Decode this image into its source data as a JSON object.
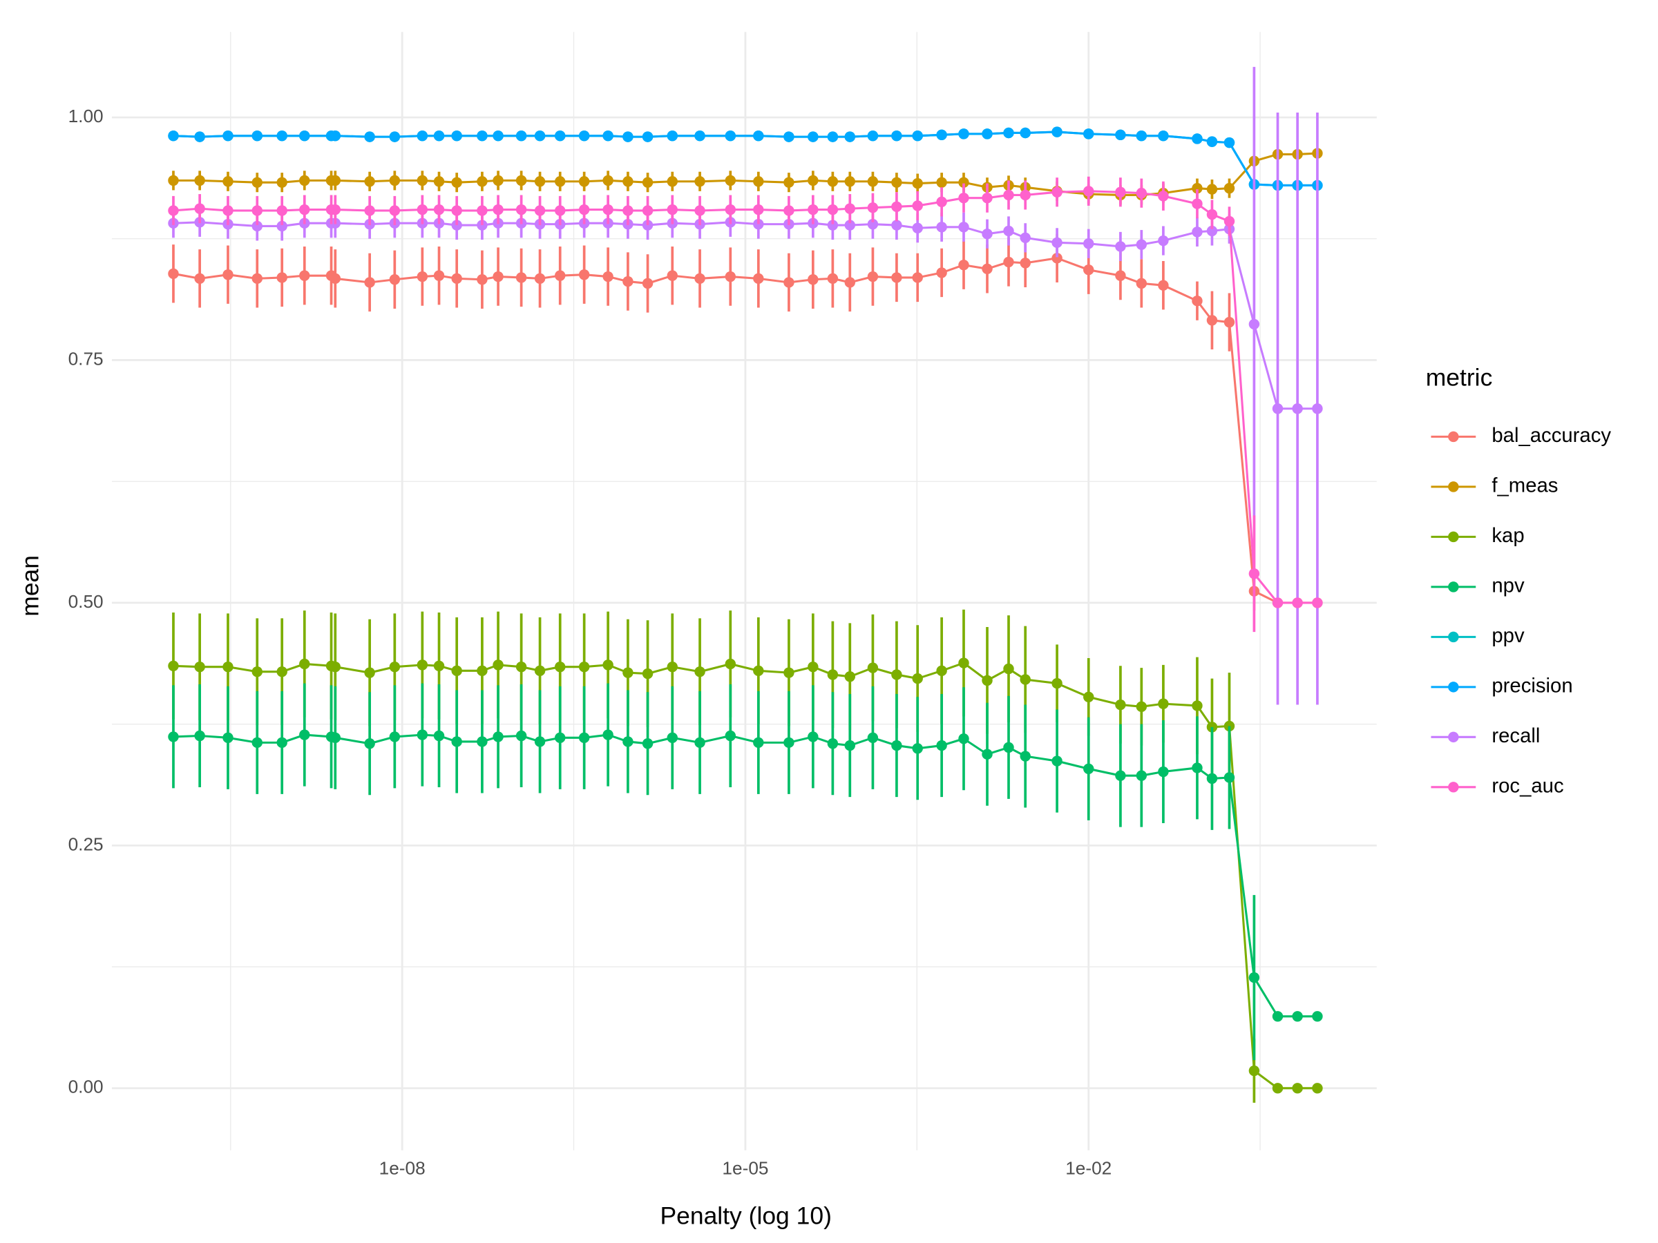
{
  "chart_data": {
    "type": "line",
    "x_label": "Penalty (log 10)",
    "y_label": "mean",
    "legend_title": "metric",
    "legend_position": "right",
    "x_log": true,
    "grid": true,
    "xlim": [
      2.9e-11,
      3.3
    ],
    "ylim": [
      -0.064,
      1.088
    ],
    "xticks": [
      {
        "value": 1e-08,
        "label": "1e-08"
      },
      {
        "value": 1e-05,
        "label": "1e-05"
      },
      {
        "value": 0.01,
        "label": "1e-02"
      }
    ],
    "xminorticks": [
      3.16e-10,
      3.16e-07,
      0.000316,
      0.316
    ],
    "yticks": [
      {
        "value": 0,
        "label": "0.00"
      },
      0.25,
      {
        "value": 0.5,
        "label": "0.50"
      },
      0.75,
      {
        "value": 1,
        "label": "1.00"
      }
    ],
    "yminorticks": [
      0.125,
      0.375,
      0.625,
      0.875
    ],
    "x": [
      1e-10,
      1.7e-10,
      3e-10,
      5.4e-10,
      8.9e-10,
      1.4e-09,
      2.4e-09,
      2.6e-09,
      5.2e-09,
      8.6e-09,
      1.5e-08,
      2.1e-08,
      3e-08,
      5e-08,
      6.9e-08,
      1.1e-07,
      1.6e-07,
      2.4e-07,
      3.9e-07,
      6.3e-07,
      9.4e-07,
      1.4e-06,
      2.3e-06,
      4e-06,
      7.4e-06,
      1.3e-05,
      2.4e-05,
      3.9e-05,
      5.8e-05,
      8.2e-05,
      0.00013,
      0.00021,
      0.00032,
      0.00052,
      0.00081,
      0.0013,
      0.002,
      0.0028,
      0.0053,
      0.01,
      0.019,
      0.029,
      0.045,
      0.089,
      0.12,
      0.17,
      0.28,
      0.45,
      0.67,
      1
    ],
    "series": [
      {
        "name": "bal_accuracy",
        "color": "#F8766D",
        "values": [
          0.839,
          0.834,
          0.838,
          0.834,
          0.835,
          0.837,
          0.837,
          0.834,
          0.83,
          0.833,
          0.836,
          0.837,
          0.834,
          0.833,
          0.836,
          0.835,
          0.834,
          0.837,
          0.838,
          0.836,
          0.831,
          0.829,
          0.837,
          0.834,
          0.836,
          0.834,
          0.83,
          0.833,
          0.834,
          0.83,
          0.836,
          0.835,
          0.835,
          0.84,
          0.848,
          0.844,
          0.851,
          0.85,
          0.855,
          0.843,
          0.837,
          0.829,
          0.827,
          0.811,
          0.791,
          0.789,
          0.512,
          0.5,
          0.5,
          0.5
        ],
        "errors": [
          0.03,
          0.03,
          0.03,
          0.03,
          0.03,
          0.03,
          0.03,
          0.03,
          0.03,
          0.03,
          0.03,
          0.03,
          0.03,
          0.03,
          0.03,
          0.03,
          0.03,
          0.03,
          0.03,
          0.03,
          0.03,
          0.03,
          0.03,
          0.03,
          0.03,
          0.03,
          0.03,
          0.03,
          0.03,
          0.03,
          0.03,
          0.025,
          0.025,
          0.025,
          0.025,
          0.025,
          0.025,
          0.025,
          0.025,
          0.025,
          0.025,
          0.025,
          0.025,
          0.02,
          0.03,
          0.03,
          0.02,
          0,
          0,
          0
        ]
      },
      {
        "name": "f_meas",
        "color": "#CD9600",
        "values": [
          0.935,
          0.935,
          0.934,
          0.933,
          0.933,
          0.935,
          0.935,
          0.935,
          0.934,
          0.935,
          0.935,
          0.934,
          0.933,
          0.934,
          0.935,
          0.935,
          0.934,
          0.934,
          0.934,
          0.935,
          0.934,
          0.933,
          0.934,
          0.934,
          0.935,
          0.934,
          0.933,
          0.935,
          0.934,
          0.934,
          0.934,
          0.933,
          0.932,
          0.933,
          0.933,
          0.928,
          0.93,
          0.928,
          0.924,
          0.921,
          0.92,
          0.92,
          0.922,
          0.927,
          0.926,
          0.927,
          0.955,
          0.962,
          0.962,
          0.963
        ],
        "errors": [
          0.01,
          0.01,
          0.01,
          0.01,
          0.01,
          0.01,
          0.01,
          0.01,
          0.01,
          0.01,
          0.01,
          0.01,
          0.01,
          0.01,
          0.01,
          0.01,
          0.01,
          0.01,
          0.01,
          0.01,
          0.01,
          0.01,
          0.01,
          0.01,
          0.01,
          0.01,
          0.01,
          0.01,
          0.01,
          0.01,
          0.01,
          0.01,
          0.01,
          0.01,
          0.01,
          0.01,
          0.01,
          0.01,
          0.01,
          0.01,
          0.01,
          0.01,
          0.01,
          0.01,
          0.01,
          0.01,
          0.005,
          0.005,
          0.005,
          0.005
        ]
      },
      {
        "name": "kap",
        "color": "#7CAE00",
        "values": [
          0.435,
          0.434,
          0.434,
          0.429,
          0.429,
          0.437,
          0.435,
          0.434,
          0.428,
          0.434,
          0.436,
          0.435,
          0.43,
          0.43,
          0.436,
          0.434,
          0.43,
          0.434,
          0.434,
          0.436,
          0.428,
          0.427,
          0.434,
          0.429,
          0.437,
          0.43,
          0.428,
          0.434,
          0.426,
          0.424,
          0.433,
          0.426,
          0.422,
          0.43,
          0.438,
          0.42,
          0.432,
          0.421,
          0.417,
          0.403,
          0.395,
          0.393,
          0.396,
          0.394,
          0.372,
          0.373,
          0.018,
          0,
          0,
          0
        ],
        "errors": [
          0.055,
          0.055,
          0.055,
          0.055,
          0.055,
          0.055,
          0.055,
          0.055,
          0.055,
          0.055,
          0.055,
          0.055,
          0.055,
          0.055,
          0.055,
          0.055,
          0.055,
          0.055,
          0.055,
          0.055,
          0.055,
          0.055,
          0.055,
          0.055,
          0.055,
          0.055,
          0.055,
          0.055,
          0.055,
          0.055,
          0.055,
          0.055,
          0.055,
          0.055,
          0.055,
          0.055,
          0.055,
          0.055,
          0.04,
          0.04,
          0.04,
          0.04,
          0.04,
          0.05,
          0.05,
          0.055,
          0.033,
          0,
          0,
          0
        ]
      },
      {
        "name": "npv",
        "color": "#00BE67",
        "values": [
          0.362,
          0.363,
          0.361,
          0.356,
          0.356,
          0.364,
          0.362,
          0.361,
          0.355,
          0.362,
          0.364,
          0.363,
          0.357,
          0.357,
          0.362,
          0.363,
          0.357,
          0.361,
          0.361,
          0.364,
          0.357,
          0.355,
          0.361,
          0.356,
          0.363,
          0.356,
          0.356,
          0.362,
          0.355,
          0.353,
          0.361,
          0.353,
          0.35,
          0.353,
          0.36,
          0.344,
          0.351,
          0.342,
          0.337,
          0.329,
          0.322,
          0.322,
          0.326,
          0.33,
          0.319,
          0.32,
          0.114,
          0.074,
          0.074,
          0.074
        ],
        "errors": [
          0.053,
          0.053,
          0.053,
          0.053,
          0.053,
          0.053,
          0.053,
          0.053,
          0.053,
          0.053,
          0.053,
          0.053,
          0.053,
          0.053,
          0.053,
          0.053,
          0.053,
          0.053,
          0.053,
          0.053,
          0.053,
          0.053,
          0.053,
          0.053,
          0.053,
          0.053,
          0.053,
          0.053,
          0.053,
          0.053,
          0.053,
          0.053,
          0.053,
          0.053,
          0.053,
          0.053,
          0.053,
          0.053,
          0.053,
          0.053,
          0.053,
          0.053,
          0.053,
          0.053,
          0.053,
          0.053,
          0.085,
          0.005,
          0.005,
          0.005
        ]
      },
      {
        "name": "ppv",
        "color": "#00BFC4",
        "values": [
          0.981,
          0.98,
          0.981,
          0.981,
          0.981,
          0.981,
          0.981,
          0.981,
          0.98,
          0.98,
          0.981,
          0.981,
          0.981,
          0.981,
          0.981,
          0.981,
          0.981,
          0.981,
          0.981,
          0.981,
          0.98,
          0.98,
          0.981,
          0.981,
          0.981,
          0.981,
          0.98,
          0.98,
          0.98,
          0.98,
          0.981,
          0.981,
          0.981,
          0.982,
          0.983,
          0.983,
          0.984,
          0.984,
          0.985,
          0.983,
          0.982,
          0.981,
          0.981,
          0.978,
          0.975,
          0.974,
          0.931,
          0.93,
          0.93,
          0.93
        ],
        "errors": [
          0.003,
          0.003,
          0.003,
          0.003,
          0.003,
          0.003,
          0.003,
          0.003,
          0.003,
          0.003,
          0.003,
          0.003,
          0.003,
          0.003,
          0.003,
          0.003,
          0.003,
          0.003,
          0.003,
          0.003,
          0.003,
          0.003,
          0.003,
          0.003,
          0.003,
          0.003,
          0.003,
          0.003,
          0.003,
          0.003,
          0.003,
          0.003,
          0.003,
          0.003,
          0.003,
          0.003,
          0.003,
          0.003,
          0.003,
          0.003,
          0.003,
          0.003,
          0.003,
          0.003,
          0.003,
          0.003,
          0.003,
          0.003,
          0.003,
          0.003
        ]
      },
      {
        "name": "precision",
        "color": "#00A9FF",
        "values": [
          0.981,
          0.98,
          0.981,
          0.981,
          0.981,
          0.981,
          0.981,
          0.981,
          0.98,
          0.98,
          0.981,
          0.981,
          0.981,
          0.981,
          0.981,
          0.981,
          0.981,
          0.981,
          0.981,
          0.981,
          0.98,
          0.98,
          0.981,
          0.981,
          0.981,
          0.981,
          0.98,
          0.98,
          0.98,
          0.98,
          0.981,
          0.981,
          0.981,
          0.982,
          0.983,
          0.983,
          0.984,
          0.984,
          0.985,
          0.983,
          0.982,
          0.981,
          0.981,
          0.978,
          0.975,
          0.974,
          0.931,
          0.93,
          0.93,
          0.93
        ],
        "errors": [
          0.003,
          0.003,
          0.003,
          0.003,
          0.003,
          0.003,
          0.003,
          0.003,
          0.003,
          0.003,
          0.003,
          0.003,
          0.003,
          0.003,
          0.003,
          0.003,
          0.003,
          0.003,
          0.003,
          0.003,
          0.003,
          0.003,
          0.003,
          0.003,
          0.003,
          0.003,
          0.003,
          0.003,
          0.003,
          0.003,
          0.003,
          0.003,
          0.003,
          0.003,
          0.003,
          0.003,
          0.003,
          0.003,
          0.003,
          0.003,
          0.003,
          0.003,
          0.003,
          0.003,
          0.003,
          0.003,
          0.003,
          0.003,
          0.003,
          0.003
        ]
      },
      {
        "name": "recall",
        "color": "#C77CFF",
        "values": [
          0.891,
          0.892,
          0.89,
          0.888,
          0.888,
          0.891,
          0.891,
          0.891,
          0.89,
          0.891,
          0.891,
          0.891,
          0.889,
          0.889,
          0.891,
          0.891,
          0.89,
          0.89,
          0.891,
          0.891,
          0.89,
          0.889,
          0.891,
          0.89,
          0.892,
          0.89,
          0.89,
          0.891,
          0.889,
          0.889,
          0.89,
          0.889,
          0.886,
          0.887,
          0.887,
          0.88,
          0.883,
          0.876,
          0.871,
          0.87,
          0.867,
          0.869,
          0.873,
          0.882,
          0.883,
          0.885,
          0.787,
          0.7,
          0.7,
          0.7
        ],
        "errors": [
          0.015,
          0.015,
          0.015,
          0.015,
          0.015,
          0.015,
          0.015,
          0.015,
          0.015,
          0.015,
          0.015,
          0.015,
          0.015,
          0.015,
          0.015,
          0.015,
          0.015,
          0.015,
          0.015,
          0.015,
          0.015,
          0.015,
          0.015,
          0.015,
          0.015,
          0.015,
          0.015,
          0.015,
          0.015,
          0.015,
          0.015,
          0.015,
          0.015,
          0.015,
          0.015,
          0.015,
          0.015,
          0.015,
          0.015,
          0.015,
          0.015,
          0.015,
          0.015,
          0.015,
          0.015,
          0.015,
          0.265,
          0.305,
          0.305,
          0.305
        ]
      },
      {
        "name": "roc_auc",
        "color": "#FF61CC",
        "values": [
          0.904,
          0.906,
          0.904,
          0.904,
          0.904,
          0.905,
          0.905,
          0.905,
          0.904,
          0.904,
          0.905,
          0.905,
          0.904,
          0.904,
          0.905,
          0.905,
          0.904,
          0.904,
          0.905,
          0.905,
          0.904,
          0.904,
          0.905,
          0.904,
          0.905,
          0.905,
          0.904,
          0.905,
          0.905,
          0.906,
          0.907,
          0.908,
          0.909,
          0.913,
          0.917,
          0.917,
          0.92,
          0.92,
          0.923,
          0.924,
          0.923,
          0.922,
          0.919,
          0.911,
          0.9,
          0.893,
          0.53,
          0.5,
          0.5,
          0.5
        ],
        "errors": [
          0.015,
          0.015,
          0.015,
          0.015,
          0.015,
          0.015,
          0.015,
          0.015,
          0.015,
          0.015,
          0.015,
          0.015,
          0.015,
          0.015,
          0.015,
          0.015,
          0.015,
          0.015,
          0.015,
          0.015,
          0.015,
          0.015,
          0.015,
          0.015,
          0.015,
          0.015,
          0.015,
          0.015,
          0.015,
          0.015,
          0.015,
          0.015,
          0.015,
          0.015,
          0.015,
          0.015,
          0.015,
          0.015,
          0.015,
          0.015,
          0.015,
          0.015,
          0.015,
          0.015,
          0.015,
          0.015,
          0.06,
          0,
          0,
          0
        ]
      }
    ]
  }
}
